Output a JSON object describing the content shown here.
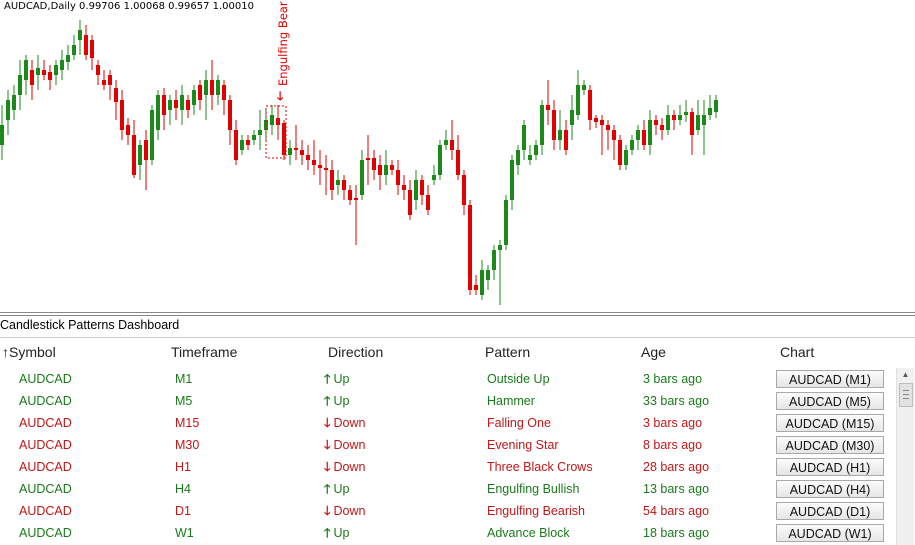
{
  "chart": {
    "info_text": "AUDCAD,Daily  0.99706 1.00068 0.99657 1.00010",
    "pattern_label": "Engulfing Bear",
    "bull_color": "#1b8a1b",
    "bear_color": "#e00000"
  },
  "dashboard": {
    "title": "Candlestick Patterns Dashboard",
    "columns": [
      "Symbol",
      "Timeframe",
      "Direction",
      "Pattern",
      "Age",
      "Chart"
    ],
    "sort_indicator": "↑",
    "rows": [
      {
        "symbol": "AUDCAD",
        "timeframe": "M1",
        "direction": "Up",
        "arrow": "🡑",
        "pattern": "Outside Up",
        "age": "3 bars ago",
        "chart": "AUDCAD (M1)",
        "trend": "up"
      },
      {
        "symbol": "AUDCAD",
        "timeframe": "M5",
        "direction": "Up",
        "arrow": "🡑",
        "pattern": "Hammer",
        "age": "33 bars ago",
        "chart": "AUDCAD (M5)",
        "trend": "up"
      },
      {
        "symbol": "AUDCAD",
        "timeframe": "M15",
        "direction": "Down",
        "arrow": "🡓",
        "pattern": "Falling One",
        "age": "3 bars ago",
        "chart": "AUDCAD (M15)",
        "trend": "down"
      },
      {
        "symbol": "AUDCAD",
        "timeframe": "M30",
        "direction": "Down",
        "arrow": "🡓",
        "pattern": "Evening Star",
        "age": "8 bars ago",
        "chart": "AUDCAD (M30)",
        "trend": "down"
      },
      {
        "symbol": "AUDCAD",
        "timeframe": "H1",
        "direction": "Down",
        "arrow": "🡓",
        "pattern": "Three Black Crows",
        "age": "28 bars ago",
        "chart": "AUDCAD (H1)",
        "trend": "down"
      },
      {
        "symbol": "AUDCAD",
        "timeframe": "H4",
        "direction": "Up",
        "arrow": "🡑",
        "pattern": "Engulfing Bullish",
        "age": "13 bars ago",
        "chart": "AUDCAD (H4)",
        "trend": "up"
      },
      {
        "symbol": "AUDCAD",
        "timeframe": "D1",
        "direction": "Down",
        "arrow": "🡓",
        "pattern": "Engulfing Bearish",
        "age": "54 bars ago",
        "chart": "AUDCAD (D1)",
        "trend": "down"
      },
      {
        "symbol": "AUDCAD",
        "timeframe": "W1",
        "direction": "Up",
        "arrow": "🡑",
        "pattern": "Advance Block",
        "age": "18 bars ago",
        "chart": "AUDCAD (W1)",
        "trend": "up"
      }
    ]
  }
}
